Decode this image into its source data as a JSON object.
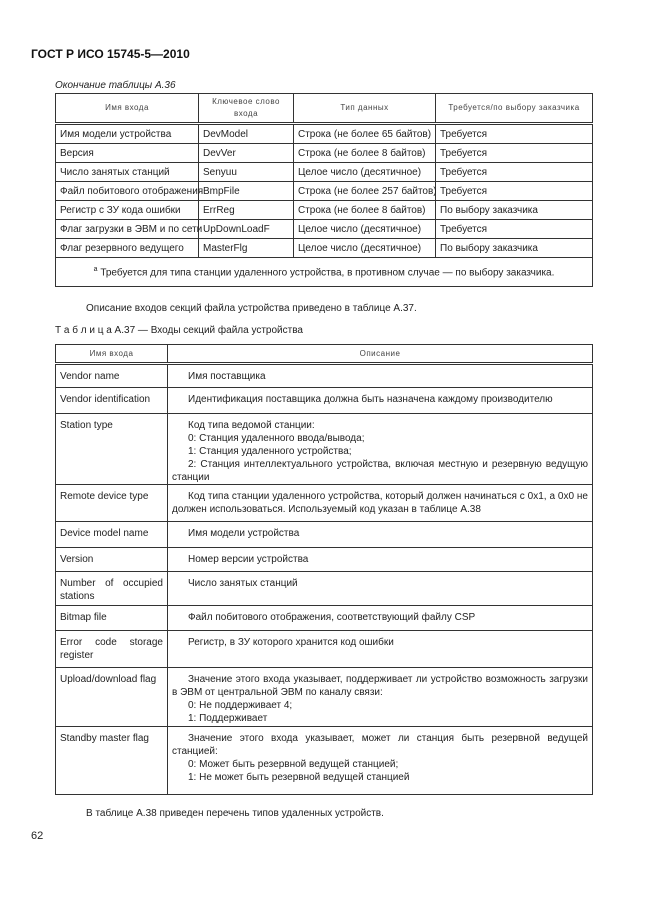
{
  "header": {
    "doc_id": "ГОСТ Р ИСО 15745-5—2010"
  },
  "table_a36": {
    "continuation_label": "Окончание таблицы А.36",
    "columns": [
      "Имя входа",
      "Ключевое слово входа",
      "Тип данных",
      "Требуется/по выбору заказчика"
    ],
    "rows": [
      [
        "Имя модели устройства",
        "DevModel",
        "Строка  (не  более 65 байтов)",
        "Требуется"
      ],
      [
        "Версия",
        "DevVer",
        "Строка  (не  более 8 байтов)",
        "Требуется"
      ],
      [
        "Число занятых станций",
        "Senyuu",
        "Целое число (десятичное)",
        "Требуется"
      ],
      [
        "Файл побитового отображения",
        "BmpFile",
        "Строка (не более 257 байтов)",
        "Требуется"
      ],
      [
        "Регистр с ЗУ кода ошибки",
        "ErrReg",
        "Строка (не более 8 байтов)",
        "По выбору заказчика"
      ],
      [
        "Флаг загрузки в ЭВМ и по сети",
        "UpDownLoadF",
        "Целое число (десятичное)",
        "Требуется"
      ],
      [
        "Флаг резервного ведущего",
        "MasterFlg",
        "Целое число (десятичное)",
        "По выбору заказчика"
      ]
    ],
    "footnote_mark": "a",
    "footnote": "Требуется для типа станции удаленного устройства, в противном случае — по выбору заказчика."
  },
  "para1": "Описание входов секций файла устройства приведено в таблице А.37.",
  "table_a37": {
    "caption_prefix": "Т а б л и ц а  А.37",
    "caption": " — Входы секций файла устройства",
    "columns": [
      "Имя входа",
      "Описание"
    ],
    "rows": [
      {
        "name": "Vendor name",
        "desc": [
          "Имя поставщика"
        ]
      },
      {
        "name": "Vendor identification",
        "desc": [
          "Идентификация поставщика должна быть назначена каждому производителю"
        ]
      },
      {
        "name": "Station type",
        "desc": [
          "Код типа ведомой станции:",
          "0: Станция удаленного ввода/вывода;",
          "1: Станция удаленного устройства;",
          "2: Станция интеллектуального устройства, включая местную и резервную ведущую станции"
        ]
      },
      {
        "name": "Remote device type",
        "desc": [
          "Код типа станции удаленного устройства, который должен начинаться с 0x1, а 0x0 не должен использоваться. Используемый код указан в таблице А.38"
        ]
      },
      {
        "name": "Device model name",
        "desc": [
          "Имя модели устройства"
        ]
      },
      {
        "name": "Version",
        "desc": [
          "Номер версии устройства"
        ]
      },
      {
        "name": "Number of occupied stations",
        "desc": [
          "Число занятых станций"
        ]
      },
      {
        "name": "Bitmap file",
        "desc": [
          "Файл побитового отображения, соответствующий файлу CSP"
        ]
      },
      {
        "name": "Error code storage register",
        "desc": [
          "Регистр, в ЗУ которого хранится код ошибки"
        ]
      },
      {
        "name": "Upload/download flag",
        "desc": [
          "Значение этого входа указывает, поддерживает ли устройство возможность загрузки в ЭВМ от центральной ЭВМ по каналу связи:",
          "0: Не поддерживает 4;",
          "1: Поддерживает"
        ]
      },
      {
        "name": "Standby master flag",
        "desc": [
          "Значение этого входа указывает, может ли станция быть резервной ведущей станцией:",
          "0: Может быть резервной ведущей станцией;",
          "1: Не может быть резервной ведущей станцией"
        ]
      }
    ]
  },
  "para2": "В таблице А.38 приведен перечень типов удаленных устройств.",
  "page_number": "62"
}
